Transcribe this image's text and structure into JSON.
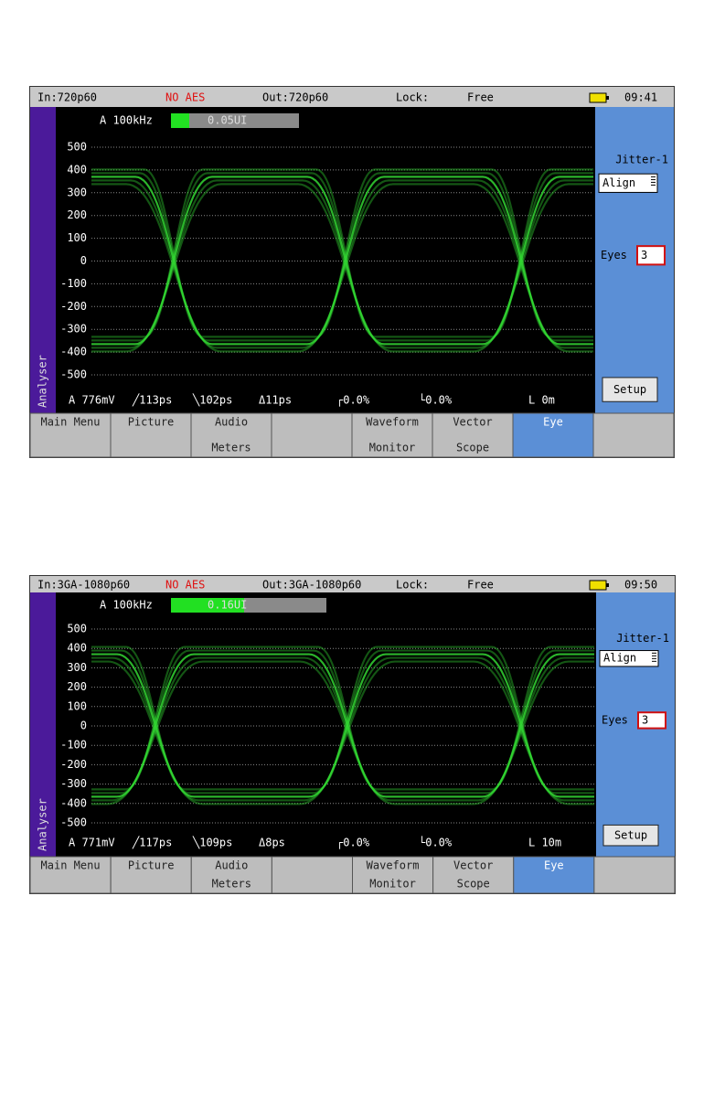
{
  "screens": [
    {
      "status": {
        "input": "In:720p60",
        "aes": "NO AES",
        "output": "Out:720p60",
        "lock_label": "Lock:",
        "lock": "Free",
        "time": "09:41"
      },
      "jitter": {
        "filter": "A 100kHz",
        "value": "0.05UI"
      },
      "y_labels": [
        500,
        400,
        300,
        200,
        100,
        0,
        -100,
        -200,
        -300,
        -400,
        -500
      ],
      "side_label": "Analyser",
      "panel": {
        "title": "Jitter-1",
        "mode": "Align",
        "eyes_label": "Eyes",
        "eyes": "3",
        "setup": "Setup"
      },
      "measurements": [
        "A 776mV",
        "╱113ps",
        "╲102ps",
        "Δ11ps",
        "┌0.0%",
        "└0.0%",
        "L 0m"
      ],
      "menu": [
        [
          "Main Menu"
        ],
        [
          "Picture"
        ],
        [
          "Audio",
          "Meters"
        ],
        [
          "Waveform",
          "Monitor"
        ],
        [
          "Vector",
          "Scope"
        ],
        [
          "Eye"
        ]
      ],
      "selected_tab": 5
    },
    {
      "status": {
        "input": "In:3GA-1080p60",
        "aes": "NO AES",
        "output": "Out:3GA-1080p60",
        "lock_label": "Lock:",
        "lock": "Free",
        "time": "09:50"
      },
      "jitter": {
        "filter": "A 100kHz",
        "value": "0.16UI"
      },
      "y_labels": [
        500,
        400,
        300,
        200,
        100,
        0,
        -100,
        -200,
        -300,
        -400,
        -500
      ],
      "side_label": "Analyser",
      "panel": {
        "title": "Jitter-1",
        "mode": "Align",
        "eyes_label": "Eyes",
        "eyes": "3",
        "setup": "Setup"
      },
      "measurements": [
        "A 771mV",
        "╱117ps",
        "╲109ps",
        "Δ8ps",
        "┌0.0%",
        "└0.0%",
        "L 10m"
      ],
      "menu": [
        [
          "Main Menu"
        ],
        [
          "Picture"
        ],
        [
          "Audio",
          "Meters"
        ],
        [
          "Waveform",
          "Monitor"
        ],
        [
          "Vector",
          "Scope"
        ],
        [
          "Eye"
        ]
      ],
      "selected_tab": 5
    }
  ]
}
